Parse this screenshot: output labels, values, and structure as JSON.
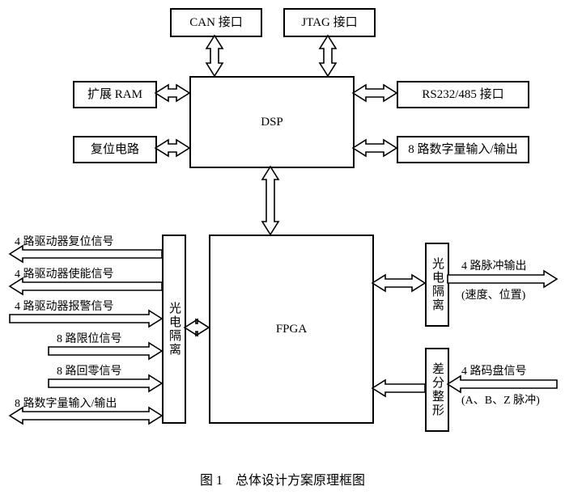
{
  "caption": "图 1　总体设计方案原理框图",
  "blocks": {
    "can": "CAN 接口",
    "jtag": "JTAG 接口",
    "dsp": "DSP",
    "ram": "扩展 RAM",
    "reset": "复位电路",
    "rs": "RS232/485 接口",
    "dio8": "8 路数字量输入/输出",
    "fpga": "FPGA",
    "opto_left": "光电隔离",
    "opto_right": "光电隔离",
    "diff": "差分整形"
  },
  "left_signals": {
    "s1": "4 路驱动器复位信号",
    "s2": "4 路驱动器使能信号",
    "s3": "4 路驱动器报警信号",
    "s4": "8 路限位信号",
    "s5": "8 路回零信号",
    "s6": "8 路数字量输入/输出"
  },
  "right_signals": {
    "pulse": "4 路脉冲输出",
    "pulse_sub": "(速度、位置)",
    "enc": "4 路码盘信号",
    "enc_sub": "(A、B、Z 脉冲)"
  },
  "style": {
    "stroke": "#000000",
    "fill": "#ffffff",
    "arrow_width": 10,
    "arrow_head": 16
  }
}
